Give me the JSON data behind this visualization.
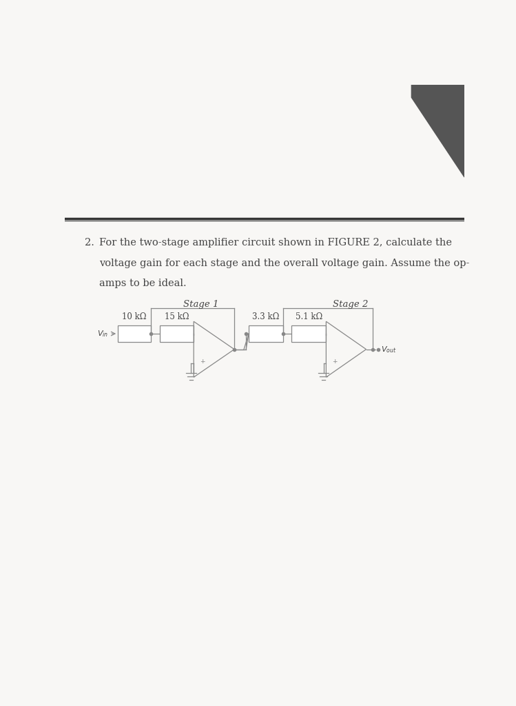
{
  "title_number": "2.",
  "question_text_line1": "For the two-stage amplifier circuit shown in FIGURE 2, calculate the",
  "question_text_line2": "voltage gain for each stage and the overall voltage gain. Assume the op-",
  "question_text_line3": "amps to be ideal.",
  "stage1_label": "Stage 1",
  "stage2_label": "Stage 2",
  "r1_label": "10 kΩ",
  "r2_label": "15 kΩ",
  "r3_label": "3.3 kΩ",
  "r4_label": "5.1 kΩ",
  "vin_label": "V_{in}",
  "vout_label": "V_{out}",
  "bg_color": "#f8f7f5",
  "line_color": "#888888",
  "text_color": "#444444",
  "font_size_question": 10.5,
  "font_size_stage": 9.5,
  "font_size_resistors": 8.5,
  "font_size_labels": 8,
  "shadow_color": "#cccccc",
  "dark_bar_color": "#222222"
}
